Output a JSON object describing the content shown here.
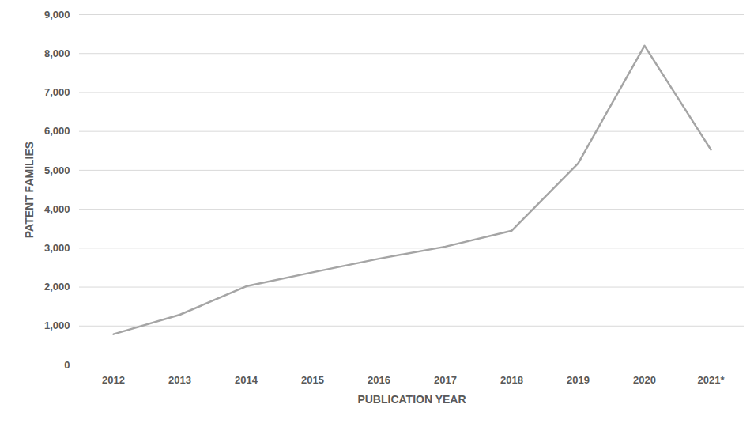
{
  "chart_data": {
    "type": "line",
    "x_label": "PUBLICATION YEAR",
    "y_label": "PATENT FAMILIES",
    "categories": [
      "2012",
      "2013",
      "2014",
      "2015",
      "2016",
      "2017",
      "2018",
      "2019",
      "2020",
      "2021*"
    ],
    "values": [
      790,
      1290,
      2020,
      2380,
      2730,
      3040,
      3450,
      5180,
      8200,
      5530
    ],
    "color": "#a5a5a5",
    "ylim": [
      0,
      9000
    ],
    "yticks": [
      0,
      1000,
      2000,
      3000,
      4000,
      5000,
      6000,
      7000,
      8000,
      9000
    ],
    "grid": true
  }
}
